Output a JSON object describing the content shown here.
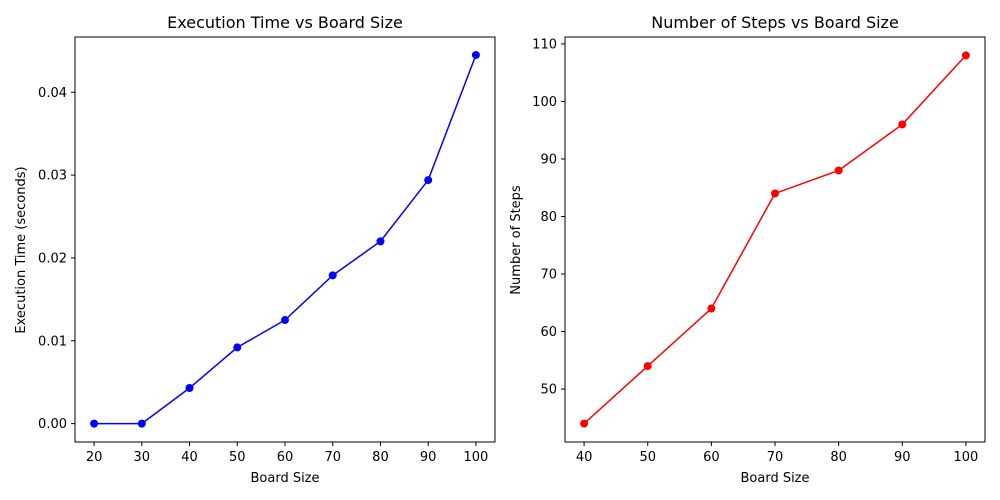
{
  "chart_data": [
    {
      "type": "line",
      "title": "Execution Time vs Board Size",
      "xlabel": "Board Size",
      "ylabel": "Execution Time (seconds)",
      "xlim": [
        16,
        104
      ],
      "ylim": [
        -0.00222,
        0.04667
      ],
      "xticks": [
        20,
        30,
        40,
        50,
        60,
        70,
        80,
        90,
        100
      ],
      "yticks": [
        0.0,
        0.01,
        0.02,
        0.03,
        0.04
      ],
      "ytick_labels": [
        "0.00",
        "0.01",
        "0.02",
        "0.03",
        "0.04"
      ],
      "grid": false,
      "marker": "circle",
      "color": "#0000ff",
      "series": [
        {
          "x": [
            20,
            30,
            40,
            50,
            60,
            70,
            80,
            90,
            100
          ],
          "y": [
            0.0,
            0.0,
            0.0043,
            0.0092,
            0.0125,
            0.0179,
            0.022,
            0.0294,
            0.0445
          ]
        }
      ]
    },
    {
      "type": "line",
      "title": "Number of Steps vs Board Size",
      "xlabel": "Board Size",
      "ylabel": "Number of Steps",
      "xlim": [
        37,
        103
      ],
      "ylim": [
        40.8,
        111.2
      ],
      "xticks": [
        40,
        50,
        60,
        70,
        80,
        90,
        100
      ],
      "yticks": [
        50,
        60,
        70,
        80,
        90,
        100,
        110
      ],
      "ytick_labels": [
        "50",
        "60",
        "70",
        "80",
        "90",
        "100",
        "110"
      ],
      "grid": false,
      "marker": "circle",
      "color": "#ff0000",
      "series": [
        {
          "x": [
            40,
            50,
            60,
            70,
            80,
            90,
            100
          ],
          "y": [
            44,
            54,
            64,
            84,
            88,
            96,
            108
          ]
        }
      ]
    }
  ]
}
